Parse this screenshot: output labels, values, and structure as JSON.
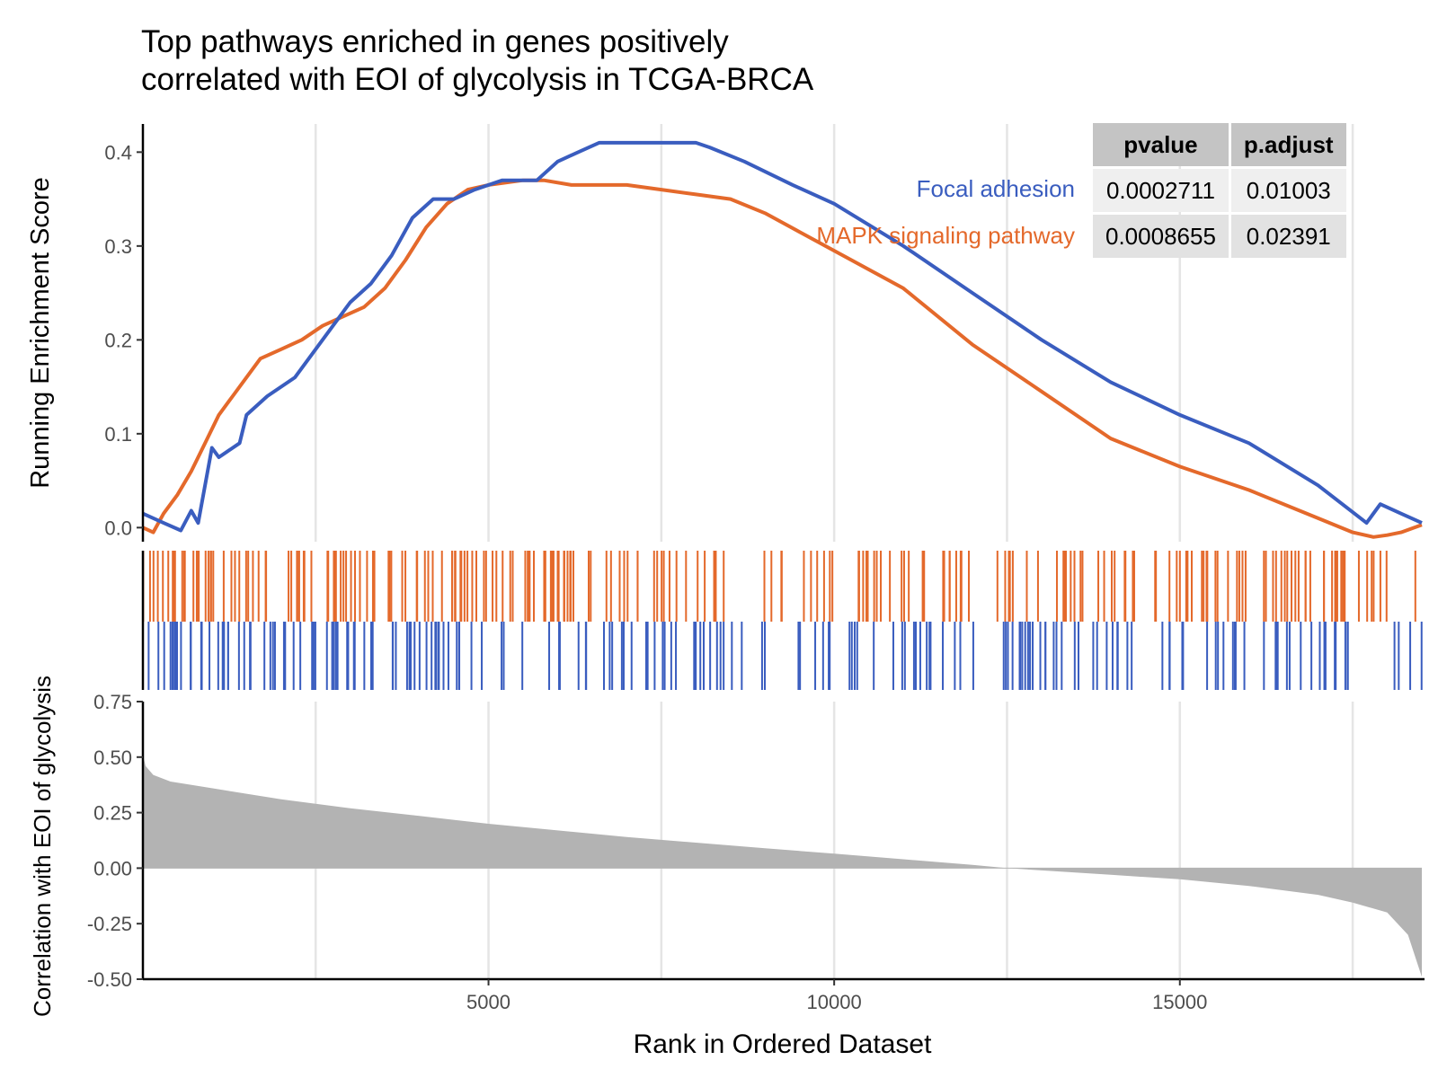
{
  "title_lines": [
    "Top pathways enriched in genes positively",
    "correlated with EOI of glycolysis in TCGA-BRCA"
  ],
  "table": {
    "headers": [
      "pvalue",
      "p.adjust"
    ],
    "rows": [
      {
        "pathway": "Focal adhesion",
        "pvalue": "0.0002711",
        "padjust": "0.01003"
      },
      {
        "pathway": "MAPK signaling pathway",
        "pvalue": "0.0008655",
        "padjust": "0.02391"
      }
    ]
  },
  "colors": {
    "focal": "#3a5dbf",
    "mapk": "#e4692b",
    "rank_fill": "#b3b3b3",
    "grid": "#e5e5e5"
  },
  "chart_data": [
    {
      "type": "line",
      "ylabel": "Running Enrichment Score",
      "xlim": [
        1,
        18500
      ],
      "ylim": [
        -0.015,
        0.43
      ],
      "yticks": [
        "0.0",
        "0.1",
        "0.2",
        "0.3",
        "0.4"
      ],
      "ytick_values": [
        0,
        0.1,
        0.2,
        0.3,
        0.4
      ],
      "series": [
        {
          "name": "Focal adhesion",
          "color": "#3a5dbf",
          "x": [
            1,
            300,
            550,
            700,
            800,
            1000,
            1100,
            1400,
            1500,
            1800,
            2200,
            2500,
            2800,
            3000,
            3300,
            3600,
            3900,
            4200,
            4500,
            4800,
            5200,
            5700,
            6000,
            6300,
            6600,
            7000,
            7500,
            8000,
            8200,
            8700,
            9400,
            10000,
            11000,
            12000,
            13000,
            14000,
            15000,
            16000,
            17000,
            17700,
            17900,
            18200,
            18500
          ],
          "y": [
            0.015,
            0.005,
            -0.003,
            0.018,
            0.005,
            0.085,
            0.075,
            0.09,
            0.12,
            0.14,
            0.16,
            0.19,
            0.22,
            0.24,
            0.26,
            0.29,
            0.33,
            0.35,
            0.35,
            0.36,
            0.37,
            0.37,
            0.39,
            0.4,
            0.41,
            0.41,
            0.41,
            0.41,
            0.405,
            0.39,
            0.365,
            0.345,
            0.3,
            0.25,
            0.2,
            0.155,
            0.12,
            0.09,
            0.045,
            0.005,
            0.025,
            0.015,
            0.005
          ]
        },
        {
          "name": "MAPK signaling pathway",
          "color": "#e4692b",
          "x": [
            1,
            150,
            300,
            500,
            700,
            900,
            1100,
            1300,
            1500,
            1700,
            2000,
            2300,
            2600,
            2900,
            3200,
            3500,
            3800,
            4100,
            4400,
            4700,
            5000,
            5500,
            5800,
            6200,
            6600,
            7000,
            7500,
            8000,
            8500,
            9000,
            9500,
            10000,
            11000,
            12000,
            13000,
            14000,
            15000,
            16000,
            17000,
            17500,
            17800,
            18000,
            18200,
            18500
          ],
          "y": [
            0.0,
            -0.005,
            0.015,
            0.035,
            0.06,
            0.09,
            0.12,
            0.14,
            0.16,
            0.18,
            0.19,
            0.2,
            0.215,
            0.225,
            0.235,
            0.255,
            0.285,
            0.32,
            0.345,
            0.36,
            0.365,
            0.37,
            0.37,
            0.365,
            0.365,
            0.365,
            0.36,
            0.355,
            0.35,
            0.335,
            0.315,
            0.295,
            0.255,
            0.195,
            0.145,
            0.095,
            0.065,
            0.04,
            0.01,
            -0.005,
            -0.01,
            -0.008,
            -0.005,
            0.003
          ]
        }
      ]
    },
    {
      "type": "bar",
      "ylabel": "Correlation with EOI of glycolysis",
      "xlabel": "Rank in Ordered Dataset",
      "xlim": [
        1,
        18500
      ],
      "ylim": [
        -0.5,
        0.75
      ],
      "yticks": [
        "0.75",
        "0.50",
        "0.25",
        "0.00",
        "-0.25",
        "-0.50"
      ],
      "ytick_values": [
        0.75,
        0.5,
        0.25,
        0,
        -0.25,
        -0.5
      ],
      "xticks": [
        "5000",
        "10000",
        "15000"
      ],
      "xtick_values": [
        5000,
        10000,
        15000
      ],
      "x": [
        1,
        40,
        150,
        400,
        1000,
        2000,
        3000,
        4000,
        5000,
        6000,
        7000,
        8000,
        9000,
        10000,
        11000,
        12000,
        12500,
        13000,
        14000,
        15000,
        16000,
        17000,
        17500,
        18000,
        18300,
        18500
      ],
      "y": [
        0.51,
        0.46,
        0.42,
        0.39,
        0.36,
        0.31,
        0.27,
        0.235,
        0.2,
        0.17,
        0.14,
        0.115,
        0.09,
        0.065,
        0.04,
        0.015,
        0.0,
        -0.01,
        -0.03,
        -0.05,
        -0.08,
        -0.12,
        -0.155,
        -0.2,
        -0.3,
        -0.49
      ]
    }
  ]
}
